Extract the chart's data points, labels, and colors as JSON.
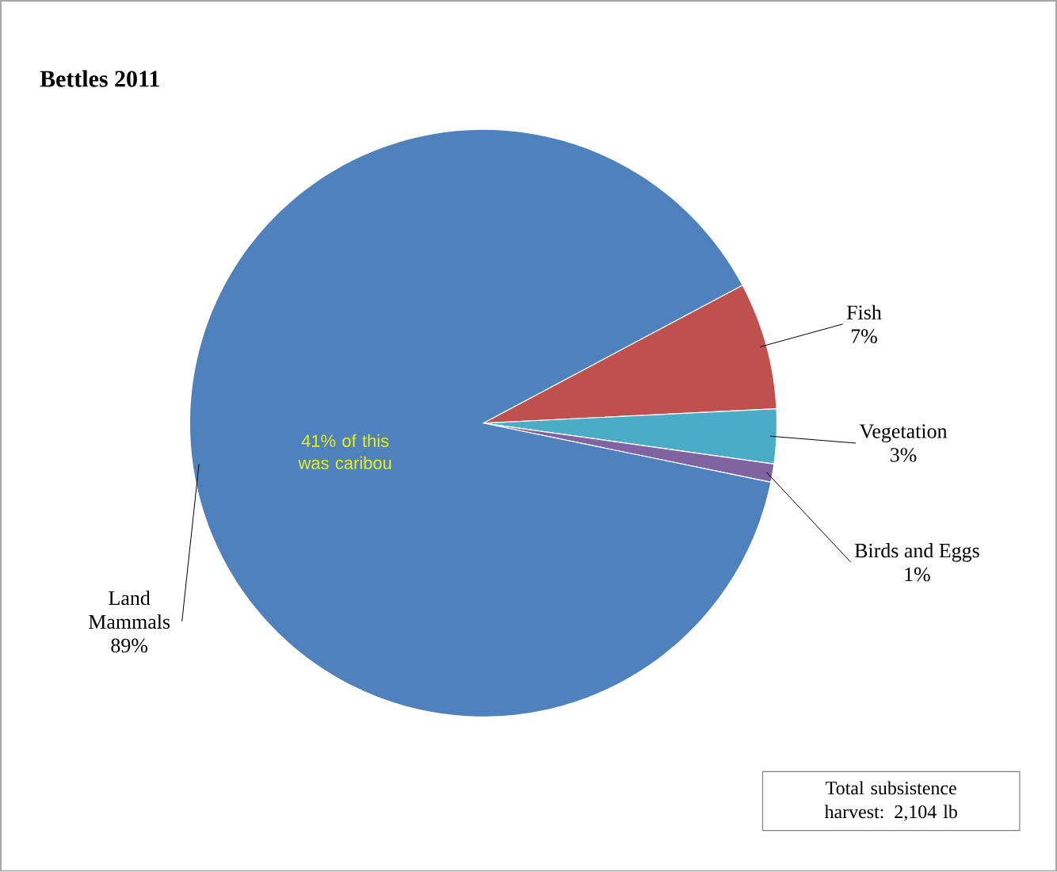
{
  "chart_data": {
    "type": "pie",
    "title": "Bettles 2011",
    "categories": [
      "Fish",
      "Vegetation",
      "Birds and Eggs",
      "Land Mammals"
    ],
    "values": [
      7,
      3,
      1,
      89
    ],
    "value_labels": [
      "7%",
      "3%",
      "1%",
      "89%"
    ],
    "colors": [
      "#c0504d",
      "#4bacc6",
      "#8064a2",
      "#4f81bd"
    ],
    "annotations": [
      "41% of this was caribou",
      "Total subsistence harvest: 2,104 lb"
    ]
  }
}
